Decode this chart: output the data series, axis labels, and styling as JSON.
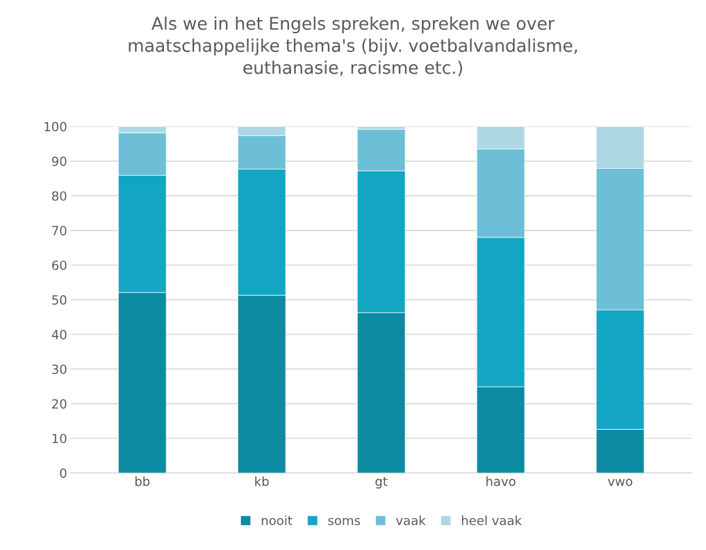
{
  "chart_data": {
    "type": "bar",
    "title": "Als we in het Engels spreken, spreken we over\nmaatschappelijke thema's (bijv. voetbalvandalisme,\neuthanasie, racisme etc.)",
    "categories": [
      "bb",
      "kb",
      "gt",
      "havo",
      "vwo"
    ],
    "stacked": true,
    "series": [
      {
        "name": "nooit",
        "color": "#0c8ba2",
        "values": [
          52.1,
          51.3,
          46.3,
          24.9,
          12.6
        ]
      },
      {
        "name": "soms",
        "color": "#13a6c3",
        "values": [
          33.8,
          36.4,
          40.9,
          43.1,
          34.5
        ]
      },
      {
        "name": "vaak",
        "color": "#6cbfd7",
        "values": [
          12.3,
          9.7,
          12.0,
          25.5,
          40.8
        ]
      },
      {
        "name": "heel vaak",
        "color": "#aed7e4",
        "values": [
          1.8,
          2.6,
          0.8,
          6.5,
          12.1
        ]
      }
    ],
    "ylim": [
      0,
      100
    ],
    "yticks": [
      0,
      10,
      20,
      30,
      40,
      50,
      60,
      70,
      80,
      90,
      100
    ],
    "grid": "y",
    "legend": "bottom"
  }
}
